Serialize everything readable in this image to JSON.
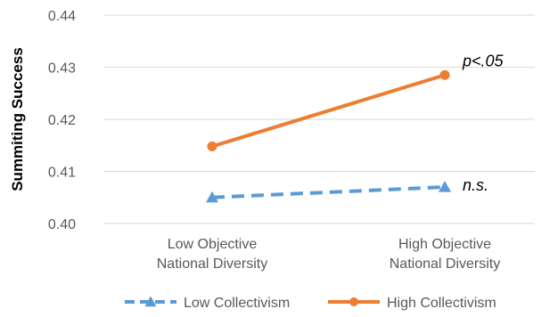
{
  "chart_data": {
    "type": "line",
    "title": "",
    "xlabel": "",
    "ylabel": "Summiting Success",
    "ylim": [
      0.4,
      0.44
    ],
    "yticks": [
      "0.40",
      "0.41",
      "0.42",
      "0.43",
      "0.44"
    ],
    "categories": [
      [
        "Low Objective",
        "National Diversity"
      ],
      [
        "High Objective",
        "National Diversity"
      ]
    ],
    "grid": true,
    "legend_position": "bottom",
    "series": [
      {
        "name": "Low Collectivism",
        "values": [
          0.405,
          0.407
        ],
        "color": "#5B9BD5",
        "style": "dashed",
        "marker": "triangle",
        "annotation": "n.s."
      },
      {
        "name": "High Collectivism",
        "values": [
          0.4148,
          0.4285
        ],
        "color": "#ED7D31",
        "style": "solid",
        "marker": "circle",
        "annotation": "p<.05"
      }
    ]
  }
}
